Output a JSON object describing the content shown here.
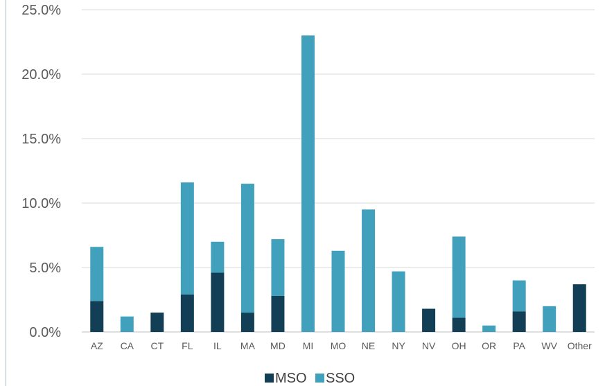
{
  "chart_data": {
    "type": "bar",
    "stacked": true,
    "categories": [
      "AZ",
      "CA",
      "CT",
      "FL",
      "IL",
      "MA",
      "MD",
      "MI",
      "MO",
      "NE",
      "NY",
      "NV",
      "OH",
      "OR",
      "PA",
      "WV",
      "Other"
    ],
    "series": [
      {
        "name": "MSO",
        "color": "#123f56",
        "values": [
          2.4,
          0.0,
          1.5,
          2.9,
          4.6,
          1.5,
          2.8,
          0.0,
          0.0,
          0.0,
          0.0,
          1.8,
          1.1,
          0.0,
          1.6,
          0.0,
          3.7
        ]
      },
      {
        "name": "SSO",
        "color": "#41a1bd",
        "values": [
          4.2,
          1.2,
          0.0,
          8.7,
          2.4,
          10.0,
          4.4,
          23.0,
          6.3,
          9.5,
          4.7,
          0.0,
          6.3,
          0.5,
          2.4,
          2.0,
          0.0
        ]
      }
    ],
    "ylim": [
      0,
      25
    ],
    "yticks": [
      "0.0%",
      "5.0%",
      "10.0%",
      "15.0%",
      "20.0%",
      "25.0%"
    ],
    "grid": true,
    "legend": "bottom-center"
  }
}
